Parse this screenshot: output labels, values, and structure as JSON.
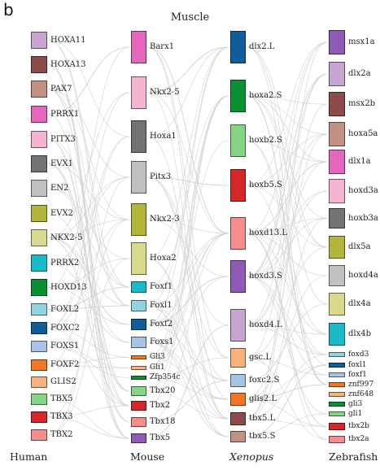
{
  "panel_letter": "b",
  "title": "Muscle",
  "columns": [
    {
      "name": "Human",
      "italic": false,
      "genes": [
        {
          "label": "HOXA11",
          "color": "#c6a5d1"
        },
        {
          "label": "HOXA13",
          "color": "#8c4a4a"
        },
        {
          "label": "PAX7",
          "color": "#c39084"
        },
        {
          "label": "PRRX1",
          "color": "#e466bd"
        },
        {
          "label": "PITX3",
          "color": "#f5b4d2"
        },
        {
          "label": "EVX1",
          "color": "#737373"
        },
        {
          "label": "EN2",
          "color": "#c0c0c0"
        },
        {
          "label": "EVX2",
          "color": "#b3b63a"
        },
        {
          "label": "NKX2-5",
          "color": "#d9d98d"
        },
        {
          "label": "PRRX2",
          "color": "#1ab9c9"
        },
        {
          "label": "HOXD13",
          "color": "#0a8f32"
        },
        {
          "label": "FOXL2",
          "color": "#92d3df"
        },
        {
          "label": "FOXC2",
          "color": "#0f5e9b"
        },
        {
          "label": "FOXS1",
          "color": "#a7c3e5"
        },
        {
          "label": "FOXF2",
          "color": "#f47622"
        },
        {
          "label": "GLIS2",
          "color": "#f6b27a"
        },
        {
          "label": "TBX5",
          "color": "#86d486"
        },
        {
          "label": "TBX3",
          "color": "#d72627"
        },
        {
          "label": "TBX2",
          "color": "#f58d8d"
        }
      ]
    },
    {
      "name": "Mouse",
      "italic": false,
      "genes": [
        {
          "label": "Barx1",
          "color": "#e466bd"
        },
        {
          "label": "Nkx2-5",
          "color": "#f5b4d2"
        },
        {
          "label": "Hoxa1",
          "color": "#737373"
        },
        {
          "label": "Pitx3",
          "color": "#c0c0c0"
        },
        {
          "label": "Nkx2-3",
          "color": "#b3b63a"
        },
        {
          "label": "Hoxa2",
          "color": "#d9d98d"
        },
        {
          "label": "Foxf1",
          "color": "#1ab9c9"
        },
        {
          "label": "Foxl1",
          "color": "#92d3df"
        },
        {
          "label": "Foxf2",
          "color": "#0f5e9b"
        },
        {
          "label": "Foxs1",
          "color": "#a7c3e5"
        },
        {
          "label": "Gli3",
          "color": "#f47622"
        },
        {
          "label": "Gli1",
          "color": "#f6b27a"
        },
        {
          "label": "Zfp354c",
          "color": "#0a8f32"
        },
        {
          "label": "Tbx20",
          "color": "#86d486"
        },
        {
          "label": "Tbx2",
          "color": "#d72627"
        },
        {
          "label": "Tbx18",
          "color": "#f58d8d"
        },
        {
          "label": "Tbx5",
          "color": "#8e5ab5"
        }
      ]
    },
    {
      "name": "Xenopus",
      "italic": true,
      "genes": [
        {
          "label": "dlx2.L",
          "color": "#0f5e9b"
        },
        {
          "label": "hoxa2.S",
          "color": "#0a8f32"
        },
        {
          "label": "hoxb2.S",
          "color": "#86d486"
        },
        {
          "label": "hoxb5.S",
          "color": "#d72627"
        },
        {
          "label": "hoxd13.L",
          "color": "#f58d8d"
        },
        {
          "label": "hoxd3.S",
          "color": "#8e5ab5"
        },
        {
          "label": "hoxd4.L",
          "color": "#c6a5d1"
        },
        {
          "label": "gsc.L",
          "color": "#f6b27a"
        },
        {
          "label": "foxc2.S",
          "color": "#a7c3e5"
        },
        {
          "label": "glis2.L",
          "color": "#f47622"
        },
        {
          "label": "tbx5.L",
          "color": "#8c4a4a"
        },
        {
          "label": "tbx5.S",
          "color": "#c39084"
        }
      ]
    },
    {
      "name": "Zebrafish",
      "italic": false,
      "genes": [
        {
          "label": "msx1a",
          "color": "#8e5ab5"
        },
        {
          "label": "dlx2a",
          "color": "#c6a5d1"
        },
        {
          "label": "msx2b",
          "color": "#8c4a4a"
        },
        {
          "label": "hoxa5a",
          "color": "#c39084"
        },
        {
          "label": "dlx1a",
          "color": "#e466bd"
        },
        {
          "label": "hoxd3a",
          "color": "#f5b4d2"
        },
        {
          "label": "hoxb3a",
          "color": "#737373"
        },
        {
          "label": "dlx5a",
          "color": "#b3b63a"
        },
        {
          "label": "hoxd4a",
          "color": "#c0c0c0"
        },
        {
          "label": "dlx4a",
          "color": "#d9d98d"
        },
        {
          "label": "dlx4b",
          "color": "#1ab9c9"
        },
        {
          "label": "foxd3",
          "color": "#92d3df"
        },
        {
          "label": "foxl1",
          "color": "#0f5e9b"
        },
        {
          "label": "foxf1",
          "color": "#a7c3e5"
        },
        {
          "label": "znf997",
          "color": "#f47622"
        },
        {
          "label": "znf648",
          "color": "#f6b27a"
        },
        {
          "label": "gli3",
          "color": "#0a8f32"
        },
        {
          "label": "gli1",
          "color": "#86d486"
        },
        {
          "label": "tbx2b",
          "color": "#d72627"
        },
        {
          "label": "tbx2a",
          "color": "#f58d8d"
        }
      ]
    }
  ]
}
